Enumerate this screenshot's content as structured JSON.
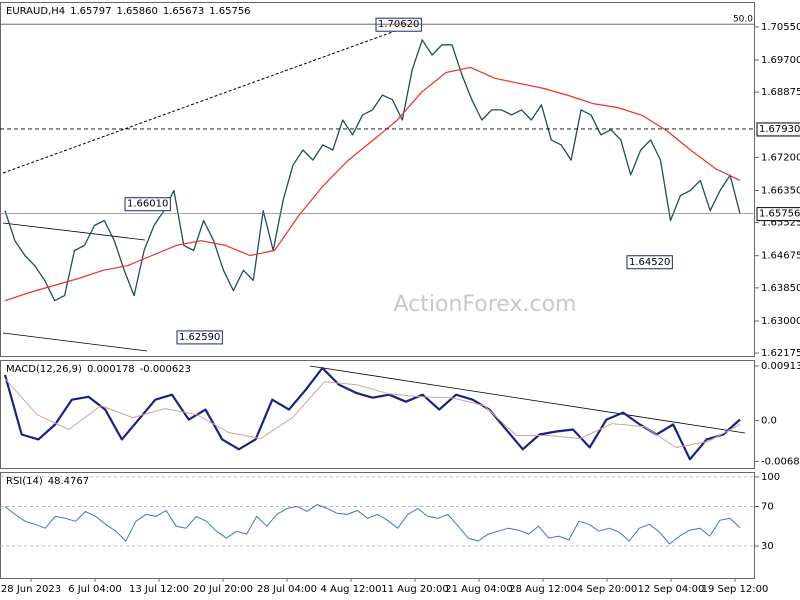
{
  "chart_data": [
    {
      "type": "line",
      "title": "EURAUD,H4",
      "ohlc": [
        1.65797,
        {
          "value": 1.6586,
          "label": "1.65860"
        },
        1.65673
      ],
      "watermark": "ActionForex.com",
      "ylim": [
        1.621,
        1.7119
      ],
      "yticks": [
        {
          "value": 1.7055,
          "label": "1.70550"
        },
        {
          "value": 1.697,
          "label": "1.69700"
        },
        1.68875,
        {
          "value": 1.672,
          "label": "1.67200"
        },
        {
          "value": 1.6635,
          "label": "1.66350"
        },
        1.65525,
        1.64675,
        {
          "value": 1.6385,
          "label": "1.63850"
        },
        {
          "value": 1.63,
          "label": "1.63000"
        },
        1.62175
      ],
      "annotations": [
        {
          "value": 1.7062,
          "label": "1.70620"
        },
        {
          "value": 1.6601,
          "label": "1.66010"
        },
        {
          "value": 1.6259,
          "label": "1.62590"
        },
        {
          "value": 1.6452,
          "label": "1.64520"
        }
      ],
      "fib_label": "50.0",
      "levels": [
        {
          "value": 1.6793,
          "label": "1.67930"
        }
      ],
      "series": [
        {
          "color": "#1f4e5a",
          "values": [
            1.6583,
            1.6506,
            1.6468,
            1.6442,
            1.6404,
            1.6352,
            1.6365,
            1.6481,
            1.6494,
            1.6545,
            1.6558,
            1.6506,
            1.643,
            1.6365,
            1.6481,
            1.6545,
            1.6583,
            1.6635,
            1.6494,
            1.6481,
            1.6558,
            1.6506,
            1.643,
            1.6378,
            1.643,
            1.6404,
            1.6583,
            1.6481,
            1.661,
            1.67,
            1.6739,
            1.6713,
            1.6752,
            1.6739,
            1.6816,
            1.6778,
            1.6829,
            1.6842,
            1.688,
            1.6868,
            1.6816,
            1.6945,
            1.7022,
            1.6983,
            1.7009,
            1.7009,
            1.6932,
            1.6868,
            1.6816,
            1.6842,
            1.6842,
            1.6829,
            1.6842,
            1.6816,
            1.6855,
            1.6765,
            1.6752,
            1.6713,
            1.6842,
            1.6829,
            1.6778,
            1.6791,
            1.6765,
            1.6675,
            1.6739,
            1.6765,
            1.6713,
            1.6558,
            1.6622,
            1.6635,
            1.6661,
            1.6583,
            1.6635,
            1.6674,
            1.65756
          ]
        },
        {
          "color": "#e8332a",
          "values": [
            1.6352,
            1.6373,
            1.6391,
            1.6409,
            1.643,
            1.6442,
            1.6468,
            1.6494,
            1.6506,
            1.6494,
            1.6468,
            1.6481,
            1.6571,
            1.6648,
            1.6712,
            1.6763,
            1.6815,
            1.6887,
            1.6938,
            1.6951,
            1.6923,
            1.691,
            1.6897,
            1.6879,
            1.6858,
            1.6848,
            1.6828,
            1.6789,
            1.6738,
            1.6691,
            1.6661
          ]
        }
      ]
    },
    {
      "type": "line",
      "title": "MACD(12,26,9)",
      "ylim": [
        -0.00793,
        0.01013
      ],
      "yticks": [
        0.00913,
        {
          "value": 0,
          "label": "0.0"
        },
        -0.006823
      ],
      "series": [
        {
          "color": "#1a237e",
          "values": [
            0.00764,
            -0.00232,
            -0.00315,
            -0.00066,
            0.00349,
            0.00398,
            0.00183,
            -0.00315,
            0.00017,
            0.00349,
            0.00432,
            0.00017,
            0.00183,
            -0.00315,
            -0.00481,
            -0.00315,
            0.00349,
            0.00183,
            0.00515,
            0.0088,
            0.00598,
            0.00465,
            0.00382,
            0.00432,
            0.00315,
            0.00432,
            0.00183,
            0.00432,
            0.00349,
            0.00183,
            -0.00149,
            -0.00481,
            -0.00232,
            -0.00183,
            -0.00149,
            -0.00448,
            0.00017,
            0.00133,
            -0.00066,
            -0.00232,
            -0.00066,
            -0.00647,
            -0.00315,
            -0.00232,
            0.000178
          ]
        },
        {
          "color": "#d4a0a0",
          "values": [
            0.007,
            0.001,
            -0.0015,
            0.0025,
            0.0005,
            0.002,
            0.001,
            -0.002,
            -0.003,
            0.0005,
            0.0065,
            0.006,
            0.0045,
            0.004,
            0.0038,
            0.0025,
            -0.0025,
            -0.0025,
            -0.003,
            -0.0005,
            -0.001,
            -0.0045,
            -0.0035,
            -0.000623
          ]
        }
      ]
    },
    {
      "type": "line",
      "title": "RSI(14)",
      "ylim": [
        -2.5,
        105
      ],
      "yticks": [
        100,
        70,
        30
      ],
      "grid": true,
      "xtick_labels": [
        "28 Jun 2023",
        "6 Jul 04:00",
        "13 Jul 12:00",
        "20 Jul 20:00",
        "28 Jul 04:00",
        "4 Aug 12:00",
        "11 Aug 20:00",
        "21 Aug 04:00",
        "28 Aug 12:00",
        "4 Sep 20:00",
        "12 Sep 04:00",
        "19 Sep 12:00"
      ],
      "series": [
        {
          "color": "#3a78c8",
          "values": [
            70,
            62,
            55,
            52,
            48,
            60,
            58,
            55,
            65,
            60,
            52,
            45,
            35,
            55,
            62,
            60,
            66,
            50,
            48,
            60,
            55,
            45,
            38,
            45,
            42,
            60,
            50,
            62,
            68,
            70,
            65,
            72,
            68,
            63,
            62,
            66,
            58,
            62,
            56,
            48,
            62,
            68,
            60,
            58,
            62,
            50,
            38,
            35,
            42,
            45,
            48,
            46,
            42,
            50,
            38,
            40,
            36,
            55,
            52,
            45,
            48,
            44,
            35,
            48,
            52,
            44,
            32,
            40,
            46,
            48,
            40,
            56,
            58,
            48.4767
          ]
        }
      ]
    }
  ]
}
